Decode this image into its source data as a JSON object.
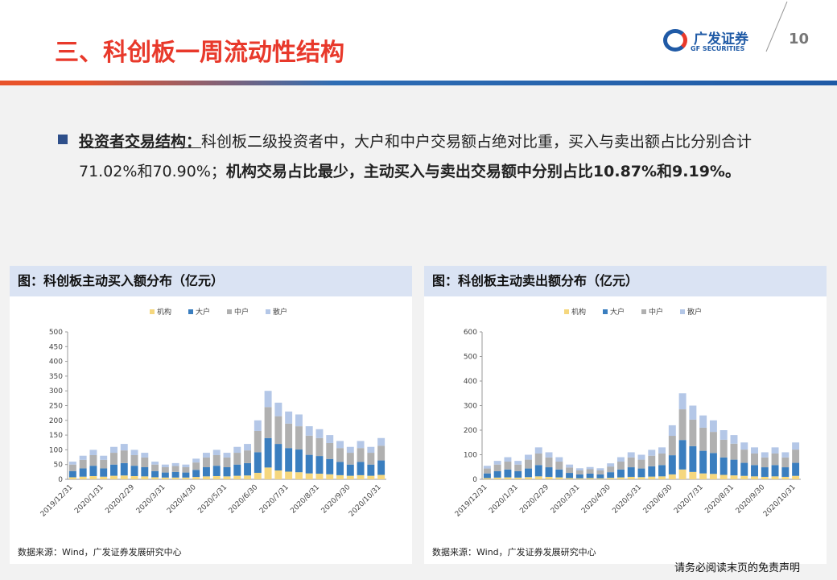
{
  "header": {
    "title": "三、科创板一周流动性结构",
    "logo_cn": "广发证券",
    "logo_en": "GF SECURITIES",
    "page": "10"
  },
  "body": {
    "segments": [
      {
        "text": "投资者交易结构：",
        "bold": true,
        "underline": true
      },
      {
        "text": "科创板二级投资者中，大户和中户交易额占绝对比重，买入与卖出额占比分别合计71.02%和70.90%；",
        "bold": false,
        "underline": false
      },
      {
        "text": "机构交易占比最少，主动买入与卖出交易额中分别占比10.87%和9.19%。",
        "bold": true,
        "underline": false
      }
    ]
  },
  "footer": "请务必阅读末页的免责声明",
  "chart_data": [
    {
      "type": "bar",
      "stacked": true,
      "title": "图：科创板主动买入额分布（亿元）",
      "source": "数据来源：Wind，广发证券发展研究中心",
      "categories": [
        "2019/12/31",
        null,
        null,
        "2020/1/31",
        null,
        null,
        "2020/2/29",
        null,
        null,
        "2020/3/31",
        null,
        null,
        "2020/4/30",
        null,
        null,
        "2020/5/31",
        null,
        null,
        "2020/6/30",
        null,
        null,
        "2020/7/31",
        null,
        null,
        "2020/8/31",
        null,
        null,
        "2020/9/30",
        null,
        null,
        "2020/10/31"
      ],
      "series": [
        {
          "name": "机构",
          "color": "#f5d77e",
          "values": [
            7,
            9,
            11,
            9,
            12,
            13,
            11,
            10,
            7,
            6,
            6,
            6,
            8,
            10,
            11,
            10,
            12,
            13,
            22,
            40,
            30,
            26,
            24,
            20,
            19,
            17,
            14,
            12,
            14,
            12,
            15
          ]
        },
        {
          "name": "大户",
          "color": "#3a7ebf",
          "values": [
            21,
            28,
            35,
            28,
            38,
            42,
            35,
            31,
            21,
            17,
            19,
            17,
            24,
            31,
            35,
            31,
            38,
            42,
            70,
            100,
            90,
            80,
            77,
            63,
            60,
            52,
            45,
            38,
            45,
            38,
            49
          ]
        },
        {
          "name": "中户",
          "color": "#b0b0b0",
          "values": [
            22,
            29,
            36,
            29,
            40,
            43,
            36,
            33,
            22,
            18,
            20,
            18,
            25,
            33,
            36,
            33,
            40,
            43,
            72,
            105,
            94,
            83,
            79,
            65,
            61,
            54,
            47,
            40,
            47,
            40,
            50
          ]
        },
        {
          "name": "散户",
          "color": "#b4c7e7",
          "values": [
            10,
            14,
            18,
            14,
            20,
            22,
            18,
            16,
            10,
            9,
            10,
            9,
            13,
            16,
            18,
            16,
            20,
            22,
            36,
            55,
            46,
            41,
            40,
            32,
            30,
            27,
            24,
            20,
            24,
            20,
            26
          ]
        }
      ],
      "ylim": [
        0,
        500
      ],
      "yticks": [
        0,
        50,
        100,
        150,
        200,
        250,
        300,
        350,
        400,
        450,
        500
      ],
      "legend": "top"
    },
    {
      "type": "bar",
      "stacked": true,
      "title": "图：科创板主动卖出额分布（亿元）",
      "source": "数据来源：Wind，广发证券发展研究中心",
      "categories": [
        "2019/12/31",
        null,
        null,
        "2020/1/31",
        null,
        null,
        "2020/2/29",
        null,
        null,
        "2020/3/31",
        null,
        null,
        "2020/4/30",
        null,
        null,
        "2020/5/31",
        null,
        null,
        "2020/6/30",
        null,
        null,
        "2020/7/31",
        null,
        null,
        "2020/8/31",
        null,
        null,
        "2020/9/30",
        null,
        null,
        "2020/10/31"
      ],
      "series": [
        {
          "name": "机构",
          "color": "#f5d77e",
          "values": [
            5,
            7,
            8,
            7,
            9,
            12,
            10,
            8,
            5,
            4,
            5,
            4,
            6,
            8,
            10,
            9,
            11,
            12,
            20,
            40,
            30,
            24,
            22,
            18,
            16,
            14,
            12,
            10,
            12,
            10,
            14
          ]
        },
        {
          "name": "大户",
          "color": "#3a7ebf",
          "values": [
            19,
            26,
            32,
            26,
            35,
            46,
            39,
            32,
            21,
            16,
            18,
            16,
            23,
            32,
            39,
            35,
            42,
            46,
            78,
            120,
            105,
            92,
            85,
            71,
            64,
            53,
            46,
            39,
            46,
            39,
            53
          ]
        },
        {
          "name": "中户",
          "color": "#b0b0b0",
          "values": [
            20,
            27,
            32,
            27,
            36,
            47,
            40,
            32,
            22,
            16,
            18,
            16,
            23,
            32,
            40,
            36,
            43,
            47,
            79,
            125,
            108,
            94,
            86,
            72,
            65,
            54,
            47,
            40,
            47,
            40,
            54
          ]
        },
        {
          "name": "散户",
          "color": "#b4c7e7",
          "values": [
            11,
            15,
            18,
            15,
            20,
            25,
            21,
            18,
            12,
            9,
            9,
            9,
            13,
            18,
            21,
            20,
            24,
            25,
            43,
            65,
            57,
            50,
            47,
            39,
            35,
            29,
            25,
            21,
            25,
            21,
            29
          ]
        }
      ],
      "ylim": [
        0,
        600
      ],
      "yticks": [
        0,
        100,
        200,
        300,
        400,
        500,
        600
      ],
      "legend": "top"
    }
  ]
}
